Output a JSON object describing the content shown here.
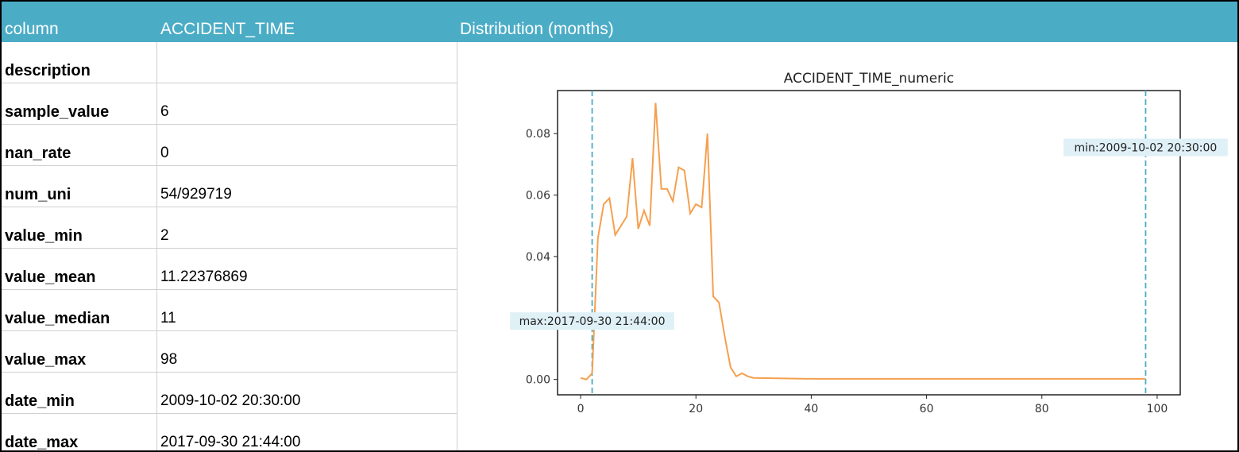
{
  "header": {
    "column_label": "column",
    "column_name": "ACCIDENT_TIME",
    "distribution_label": "Distribution (months)"
  },
  "stats": [
    {
      "key": "description",
      "value": ""
    },
    {
      "key": "sample_value",
      "value": "6"
    },
    {
      "key": "nan_rate",
      "value": "0"
    },
    {
      "key": "num_uni",
      "value": "54/929719"
    },
    {
      "key": "value_min",
      "value": "2"
    },
    {
      "key": "value_mean",
      "value": "11.22376869"
    },
    {
      "key": "value_median",
      "value": "11"
    },
    {
      "key": "value_max",
      "value": "98"
    },
    {
      "key": "date_min",
      "value": "2009-10-02 20:30:00"
    },
    {
      "key": "date_max",
      "value": "2017-09-30 21:44:00"
    }
  ],
  "colors": {
    "header_bg": "#4bacc6",
    "line": "#f5a04f",
    "vline": "#4bacc6",
    "annotation_bg": "#dff0f7"
  },
  "chart_data": {
    "type": "line",
    "title": "ACCIDENT_TIME_numeric",
    "xlabel": "",
    "ylabel": "",
    "xlim": [
      -4,
      104
    ],
    "ylim": [
      -0.005,
      0.094
    ],
    "xticks": [
      0,
      20,
      40,
      60,
      80,
      100
    ],
    "yticks": [
      0.0,
      0.02,
      0.04,
      0.06,
      0.08
    ],
    "ytick_labels": [
      "0.00",
      "0.02",
      "0.04",
      "0.06",
      "0.08"
    ],
    "grid": false,
    "x": [
      0,
      1,
      2,
      3,
      4,
      5,
      6,
      7,
      8,
      9,
      10,
      11,
      12,
      13,
      14,
      15,
      16,
      17,
      18,
      19,
      20,
      21,
      22,
      23,
      24,
      25,
      26,
      27,
      28,
      29,
      30,
      40,
      50,
      60,
      70,
      80,
      90,
      98
    ],
    "y": [
      0.0005,
      0.0,
      0.002,
      0.046,
      0.057,
      0.059,
      0.047,
      0.05,
      0.053,
      0.072,
      0.049,
      0.055,
      0.05,
      0.09,
      0.062,
      0.062,
      0.058,
      0.069,
      0.068,
      0.054,
      0.057,
      0.056,
      0.08,
      0.027,
      0.025,
      0.014,
      0.004,
      0.001,
      0.002,
      0.001,
      0.0005,
      0.0002,
      0.0002,
      0.0002,
      0.0002,
      0.0002,
      0.0002,
      0.0002
    ],
    "vlines": [
      2,
      98
    ],
    "annotations": [
      {
        "text": "min:2009-10-02 20:30:00",
        "x": 98,
        "y": 0.0755
      },
      {
        "text": "max:2017-09-30 21:44:00",
        "x": 2,
        "y": 0.019
      }
    ]
  }
}
